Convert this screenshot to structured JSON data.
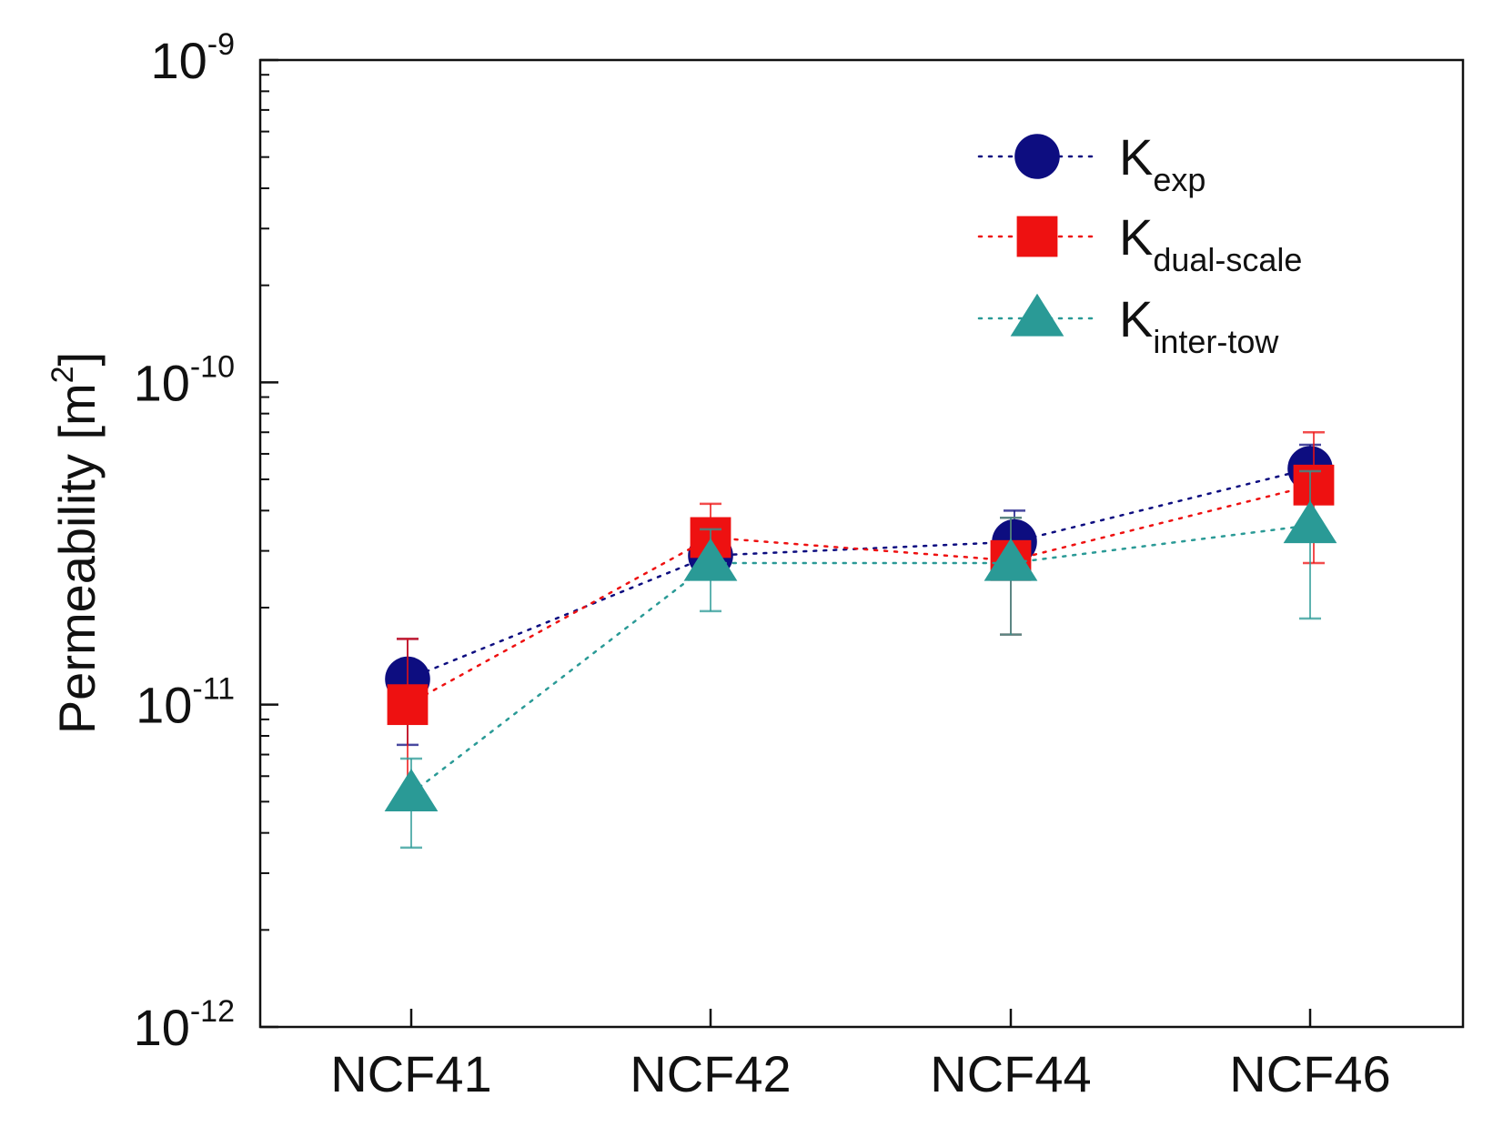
{
  "chart_data": {
    "type": "scatter",
    "title": "",
    "xlabel": "",
    "ylabel": "Permeability [m",
    "ylabel_sup": "2",
    "ylabel_close": "]",
    "yscale": "log",
    "ylim": [
      1e-12,
      1e-09
    ],
    "grid": false,
    "legend_position": "top-right",
    "categories": [
      "NCF41",
      "NCF42",
      "NCF44",
      "NCF46"
    ],
    "y_ticks": [
      {
        "value": 1e-12,
        "base": "10",
        "exp": "-12"
      },
      {
        "value": 1e-11,
        "base": "10",
        "exp": "-11"
      },
      {
        "value": 1e-10,
        "base": "10",
        "exp": "-10"
      },
      {
        "value": 1e-09,
        "base": "10",
        "exp": "-9"
      }
    ],
    "series": [
      {
        "name": "K",
        "sub": "exp",
        "marker": "circle",
        "color": "#0d0d80",
        "line": "dotted",
        "values": [
          1.2e-11,
          2.9e-11,
          3.2e-11,
          5.4e-11
        ],
        "err_low": [
          7.5e-12,
          2.5e-11,
          2.5e-11,
          3.6e-11
        ],
        "err_high": [
          1.6e-11,
          3.4e-11,
          4e-11,
          6.4e-11
        ]
      },
      {
        "name": "K",
        "sub": "dual-scale",
        "marker": "square",
        "color": "#ee1111",
        "line": "dotted",
        "values": [
          1e-11,
          3.3e-11,
          2.8e-11,
          4.8e-11
        ],
        "err_low": [
          5e-12,
          2.5e-11,
          1.65e-11,
          2.75e-11
        ],
        "err_high": [
          1.6e-11,
          4.2e-11,
          3.8e-11,
          7e-11
        ]
      },
      {
        "name": "K",
        "sub": "inter-tow",
        "marker": "triangle",
        "color": "#2a9a96",
        "line": "dotted",
        "values": [
          5.3e-12,
          2.75e-11,
          2.75e-11,
          3.6e-11
        ],
        "err_low": [
          3.6e-12,
          1.95e-11,
          1.65e-11,
          1.85e-11
        ],
        "err_high": [
          6.8e-12,
          3.5e-11,
          3.8e-11,
          5.3e-11
        ]
      }
    ]
  }
}
